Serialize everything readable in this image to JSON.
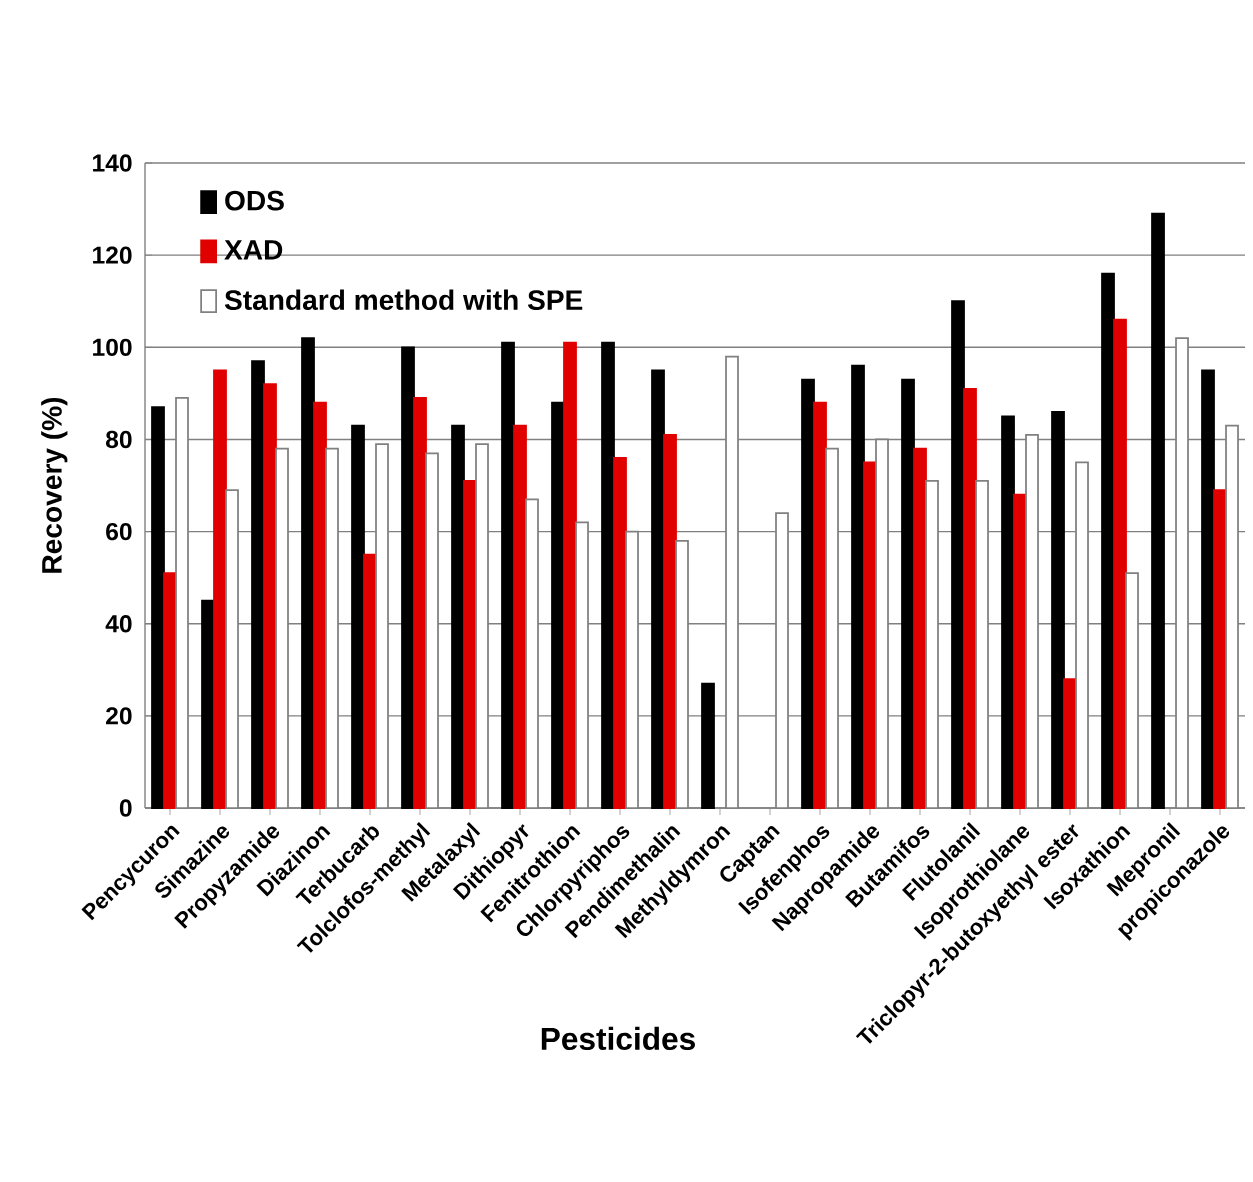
{
  "chart_data": {
    "type": "bar",
    "xlabel": "Pesticides",
    "ylabel": "Recovery   (%)",
    "categories": [
      "Pencycuron",
      "Simazine",
      "Propyzamide",
      "Diazinon",
      "Terbucarb",
      "Tolclofos-methyl",
      "Metalaxyl",
      "Dithiopyr",
      "Fenitrothion",
      "Chlorpyriphos",
      "Pendimethalin",
      "Methyldymron",
      "Captan",
      "Isofenphos",
      "Napropamide",
      "Butamifos",
      "Flutolanil",
      "Isoprothiolane",
      "Triclopyr-2-butoxyethyl ester",
      "Isoxathion",
      "Mepronil",
      "propiconazole"
    ],
    "series": [
      {
        "name": "ODS",
        "color": "#000000",
        "values": [
          87,
          45,
          97,
          102,
          83,
          100,
          83,
          101,
          88,
          101,
          95,
          27,
          null,
          93,
          96,
          93,
          110,
          85,
          86,
          116,
          129,
          95
        ]
      },
      {
        "name": "XAD",
        "color": "#e00000",
        "values": [
          51,
          95,
          92,
          88,
          55,
          89,
          71,
          83,
          101,
          76,
          81,
          null,
          null,
          88,
          75,
          78,
          91,
          68,
          28,
          106,
          null,
          69
        ]
      },
      {
        "name": "Standard method with SPE",
        "color": "#ffffff",
        "values": [
          89,
          69,
          78,
          78,
          79,
          77,
          79,
          67,
          62,
          60,
          58,
          98,
          64,
          78,
          80,
          71,
          71,
          81,
          75,
          51,
          102,
          83
        ]
      }
    ],
    "ylim": [
      0,
      140
    ],
    "yticks": [
      0,
      20,
      40,
      60,
      80,
      100,
      120,
      140
    ],
    "grid": "y",
    "legend": "top left"
  }
}
